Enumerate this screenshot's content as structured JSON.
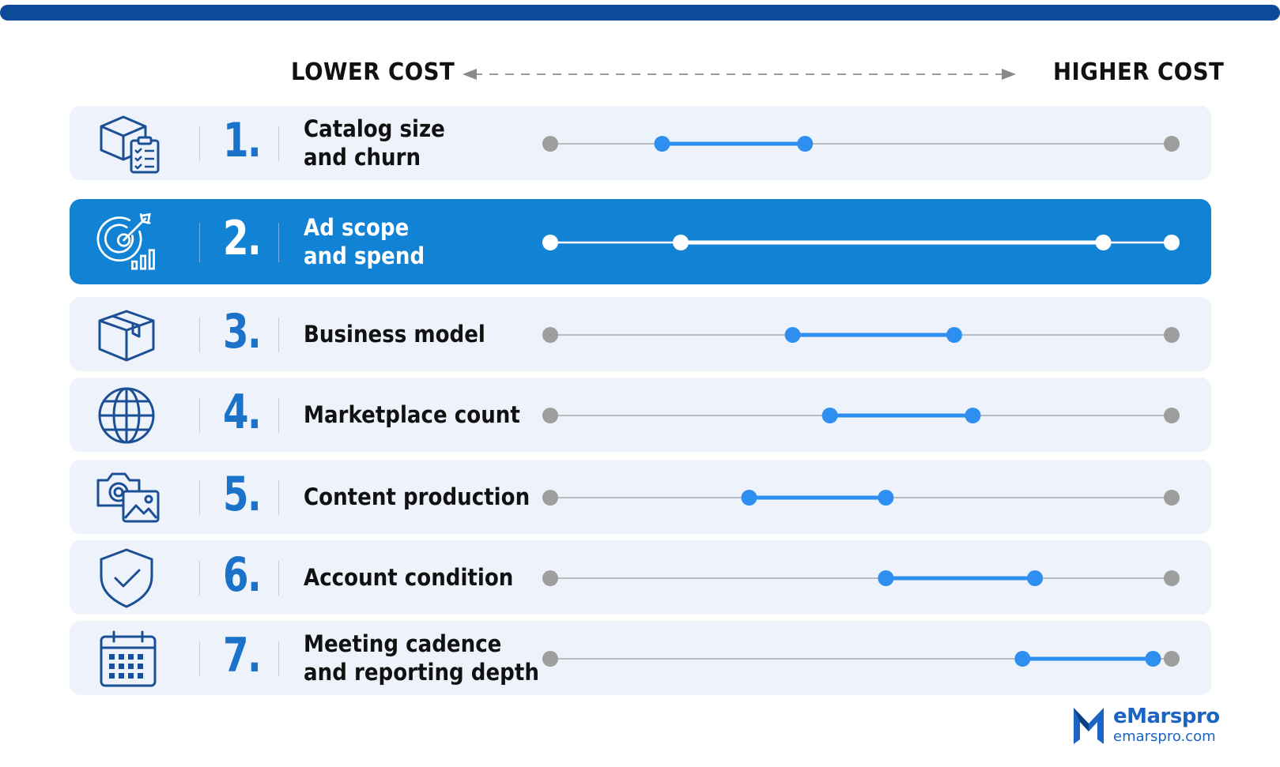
{
  "header": {
    "lower_label": "LOWER COST",
    "higher_label": "HIGHER COST"
  },
  "colors": {
    "brand_dark": "#0d4a9a",
    "accent_blue": "#1283d4",
    "range_blue": "#2f8ff0",
    "track_gray": "#a9a9a9",
    "row_bg": "#eef3fb"
  },
  "factors": [
    {
      "number": "1.",
      "lines": [
        "Catalog size",
        "and churn"
      ],
      "icon": "box-checklist-icon",
      "range": [
        0.18,
        0.41
      ],
      "highlight": false
    },
    {
      "number": "2.",
      "lines": [
        "Ad scope",
        "and spend"
      ],
      "icon": "target-chart-icon",
      "range": [
        0.21,
        0.89
      ],
      "highlight": true
    },
    {
      "number": "3.",
      "lines": [
        "Business model"
      ],
      "icon": "package-icon",
      "range": [
        0.39,
        0.65
      ],
      "highlight": false
    },
    {
      "number": "4.",
      "lines": [
        "Marketplace count"
      ],
      "icon": "globe-icon",
      "range": [
        0.45,
        0.68
      ],
      "highlight": false
    },
    {
      "number": "5.",
      "lines": [
        "Content production"
      ],
      "icon": "camera-image-icon",
      "range": [
        0.32,
        0.54
      ],
      "highlight": false
    },
    {
      "number": "6.",
      "lines": [
        "Account condition"
      ],
      "icon": "shield-check-icon",
      "range": [
        0.54,
        0.78
      ],
      "highlight": false
    },
    {
      "number": "7.",
      "lines": [
        "Meeting cadence",
        "and reporting depth"
      ],
      "icon": "calendar-icon",
      "range": [
        0.76,
        0.97
      ],
      "highlight": false
    }
  ],
  "logo": {
    "brand": "eMarspro",
    "url": "emarspro.com"
  }
}
